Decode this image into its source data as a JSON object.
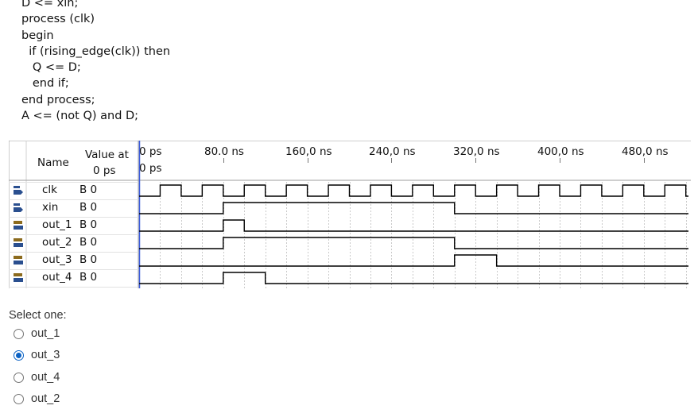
{
  "code": {
    "lines": [
      "D <= xin;",
      "process (clk)",
      "begin",
      "  if (rising_edge(clk)) then",
      "   Q <= D;",
      "   end if;",
      "end process;",
      "A <= (not Q) and D;"
    ]
  },
  "waveform": {
    "headers": {
      "name": "Name",
      "value_line1": "Value at",
      "value_line2": "0 ps",
      "time_cursor": "0 ps",
      "cursor_label": "0 ps"
    },
    "time_ticks": [
      "0 ps",
      "80.0 ns",
      "160,0 ns",
      "240,0 ns",
      "320,0 ns",
      "400,0 ns",
      "480,0 ns"
    ],
    "signals": [
      {
        "name": "clk",
        "value": "B 0",
        "pin": "in-icon",
        "levels": "clock"
      },
      {
        "name": "xin",
        "value": "B 0",
        "pin": "in-icon",
        "high_ns": [
          [
            80,
            300
          ]
        ]
      },
      {
        "name": "out_1",
        "value": "B 0",
        "pin": "out-icon",
        "high_ns": [
          [
            80,
            100
          ]
        ]
      },
      {
        "name": "out_2",
        "value": "B 0",
        "pin": "out-icon",
        "high_ns": [
          [
            80,
            300
          ]
        ]
      },
      {
        "name": "out_3",
        "value": "B 0",
        "pin": "out-icon",
        "high_ns": [
          [
            300,
            340
          ]
        ]
      },
      {
        "name": "out_4",
        "value": "B 0",
        "pin": "out-icon",
        "high_ns": [
          [
            80,
            120
          ]
        ]
      }
    ],
    "clock_period_ns": 40,
    "colors": {
      "pin_in": "#2a4f8f",
      "pin_out": "#8c6b1e",
      "grid": "#bdbdbd",
      "wave": "#000000"
    }
  },
  "quiz": {
    "prompt": "Select one:",
    "options": [
      {
        "label": "out_1",
        "selected": false
      },
      {
        "label": "out_3",
        "selected": true
      },
      {
        "label": "out_4",
        "selected": false
      },
      {
        "label": "out_2",
        "selected": false
      }
    ]
  }
}
